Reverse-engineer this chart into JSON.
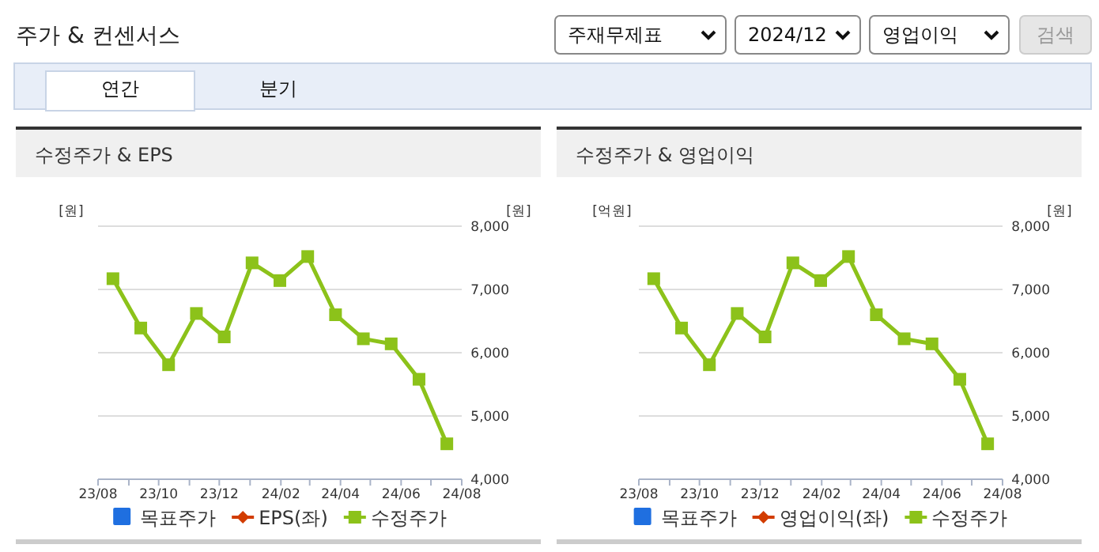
{
  "chart_data": [
    {
      "type": "other",
      "title": "주가 & 컨센서스",
      "annotations": [
        "주재무제표",
        "2024/12",
        "영업이익",
        "검색",
        "연간",
        "분기"
      ]
    },
    {
      "type": "line",
      "title": "수정주가 & EPS",
      "ylabel": "[원]",
      "y2label": "[원]",
      "x": [
        "2023-08-16",
        "2023-09-13",
        "2023-10-11",
        "2023-11-08",
        "2023-12-06",
        "2024-01-03",
        "2024-01-31",
        "2024-02-28",
        "2024-03-27",
        "2024-04-24",
        "2024-05-22",
        "2024-06-19",
        "2024-07-17"
      ],
      "xlim": [
        "2023-08-01",
        "2024-08-01"
      ],
      "xticks": [
        {
          "value": "2023-08-01",
          "label": "23/08"
        },
        {
          "value": "2023-09-01",
          "label": null
        },
        {
          "value": "2023-10-01",
          "label": "23/10"
        },
        {
          "value": "2023-11-01",
          "label": null
        },
        {
          "value": "2023-12-01",
          "label": "23/12"
        },
        {
          "value": "2024-01-01",
          "label": null
        },
        {
          "value": "2024-02-01",
          "label": "24/02"
        },
        {
          "value": "2024-03-01",
          "label": null
        },
        {
          "value": "2024-04-01",
          "label": "24/04"
        },
        {
          "value": "2024-05-01",
          "label": null
        },
        {
          "value": "2024-06-01",
          "label": "24/06"
        },
        {
          "value": "2024-07-01",
          "label": null
        },
        {
          "value": "2024-08-01",
          "label": "24/08"
        }
      ],
      "y2lim": [
        4000,
        8000
      ],
      "y2ticks": [
        {
          "value": 4000,
          "label": "4,000"
        },
        {
          "value": 5000,
          "label": "5,000"
        },
        {
          "value": 6000,
          "label": "6,000"
        },
        {
          "value": 7000,
          "label": "7,000"
        },
        {
          "value": 8000,
          "label": "8,000"
        }
      ],
      "grid": "y",
      "legend": "bottom",
      "series": [
        {
          "name": "목표주가",
          "type": "bar",
          "color": "#1f6fe0",
          "values": [
            null,
            null,
            null,
            null,
            null,
            null,
            null,
            null,
            null,
            null,
            null,
            null,
            null
          ]
        },
        {
          "name": "EPS(좌)",
          "type": "line",
          "marker": "diamond",
          "color": "#d23c00",
          "values": [
            null,
            null,
            null,
            null,
            null,
            null,
            null,
            null,
            null,
            null,
            null,
            null,
            null
          ]
        },
        {
          "name": "수정주가",
          "type": "line",
          "marker": "square",
          "axis": "y2",
          "color": "#8cc21a",
          "values": [
            7170,
            6390,
            5810,
            6620,
            6250,
            7420,
            7140,
            7520,
            6600,
            6220,
            6140,
            5580,
            4560
          ]
        }
      ]
    },
    {
      "type": "line",
      "title": "수정주가 & 영업이익",
      "ylabel": "[억원]",
      "y2label": "[원]",
      "x": [
        "2023-08-16",
        "2023-09-13",
        "2023-10-11",
        "2023-11-08",
        "2023-12-06",
        "2024-01-03",
        "2024-01-31",
        "2024-02-28",
        "2024-03-27",
        "2024-04-24",
        "2024-05-22",
        "2024-06-19",
        "2024-07-17"
      ],
      "xlim": [
        "2023-08-01",
        "2024-08-01"
      ],
      "xticks": [
        {
          "value": "2023-08-01",
          "label": "23/08"
        },
        {
          "value": "2023-09-01",
          "label": null
        },
        {
          "value": "2023-10-01",
          "label": "23/10"
        },
        {
          "value": "2023-11-01",
          "label": null
        },
        {
          "value": "2023-12-01",
          "label": "23/12"
        },
        {
          "value": "2024-01-01",
          "label": null
        },
        {
          "value": "2024-02-01",
          "label": "24/02"
        },
        {
          "value": "2024-03-01",
          "label": null
        },
        {
          "value": "2024-04-01",
          "label": "24/04"
        },
        {
          "value": "2024-05-01",
          "label": null
        },
        {
          "value": "2024-06-01",
          "label": "24/06"
        },
        {
          "value": "2024-07-01",
          "label": null
        },
        {
          "value": "2024-08-01",
          "label": "24/08"
        }
      ],
      "y2lim": [
        4000,
        8000
      ],
      "y2ticks": [
        {
          "value": 4000,
          "label": "4,000"
        },
        {
          "value": 5000,
          "label": "5,000"
        },
        {
          "value": 6000,
          "label": "6,000"
        },
        {
          "value": 7000,
          "label": "7,000"
        },
        {
          "value": 8000,
          "label": "8,000"
        }
      ],
      "grid": "y",
      "legend": "bottom",
      "series": [
        {
          "name": "목표주가",
          "type": "bar",
          "color": "#1f6fe0",
          "values": [
            null,
            null,
            null,
            null,
            null,
            null,
            null,
            null,
            null,
            null,
            null,
            null,
            null
          ]
        },
        {
          "name": "영업이익(좌)",
          "type": "line",
          "marker": "diamond",
          "color": "#d23c00",
          "values": [
            null,
            null,
            null,
            null,
            null,
            null,
            null,
            null,
            null,
            null,
            null,
            null,
            null
          ]
        },
        {
          "name": "수정주가",
          "type": "line",
          "marker": "square",
          "axis": "y2",
          "color": "#8cc21a",
          "values": [
            7170,
            6390,
            5810,
            6620,
            6250,
            7420,
            7140,
            7520,
            6600,
            6220,
            6140,
            5580,
            4560
          ]
        }
      ]
    }
  ]
}
